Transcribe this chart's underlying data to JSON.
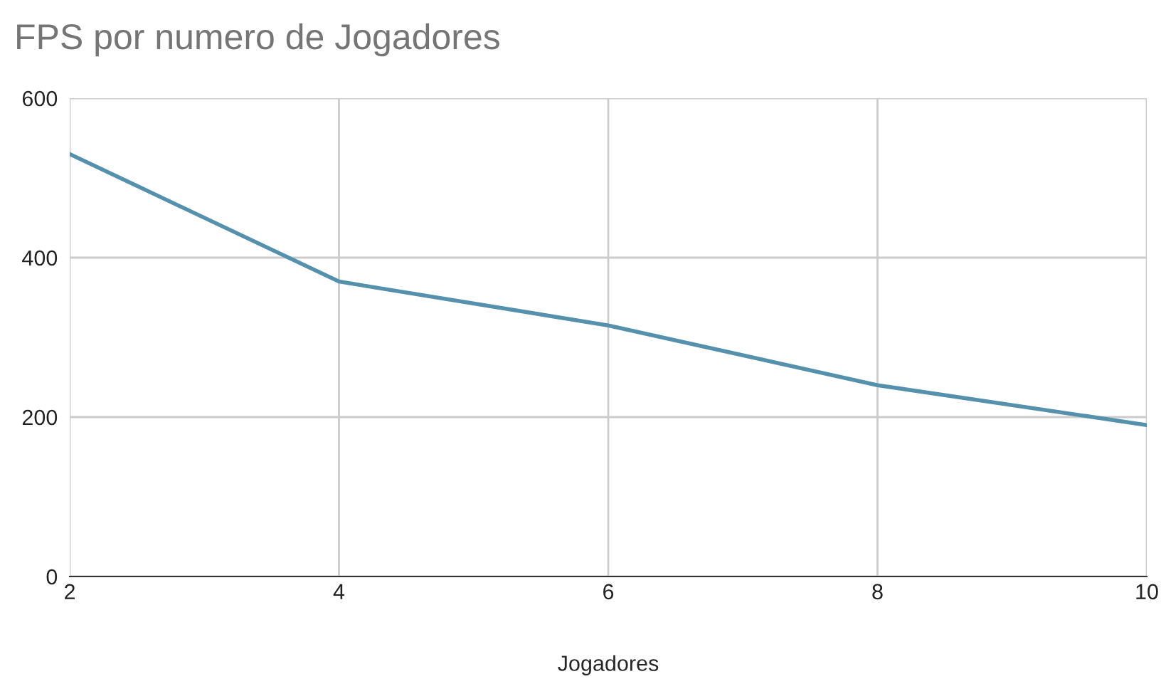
{
  "chart_data": {
    "type": "line",
    "title": "FPS por numero de Jogadores",
    "xlabel": "Jogadores",
    "x": [
      2,
      4,
      6,
      8,
      10
    ],
    "series": [
      {
        "color": "#5591ad",
        "values": [
          530,
          370,
          315,
          240,
          190
        ]
      }
    ],
    "xlim": [
      2,
      10
    ],
    "xticks": [
      2,
      4,
      6,
      8,
      10
    ],
    "ylim": [
      0,
      600
    ],
    "yticks": [
      0,
      200,
      400,
      600
    ],
    "grid": true,
    "marker": "none",
    "line_style": "solid"
  }
}
